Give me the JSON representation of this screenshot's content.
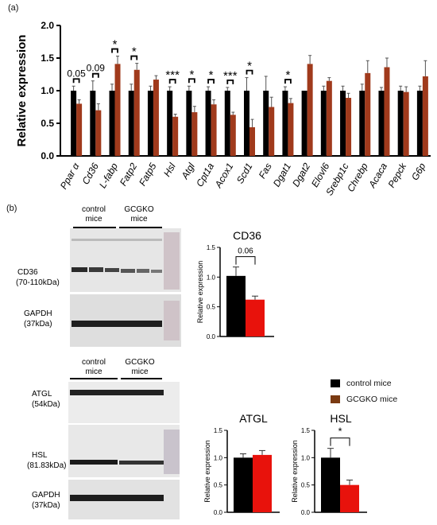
{
  "panels": {
    "a": "(a)",
    "b": "(b)"
  },
  "colors": {
    "control": "#000000",
    "gcgko_top": "#a03a1c",
    "gcgko_small": "#e8120c",
    "legend_gcgko": "#7a3a12"
  },
  "chart_data": [
    {
      "type": "bar",
      "panel": "(a)",
      "ylabel": "Relative expression",
      "ylim": [
        0,
        2.0
      ],
      "yticks": [
        "0.0",
        "0.5",
        "1.0",
        "1.5",
        "2.0"
      ],
      "categories": [
        "Ppar α",
        "Cd36",
        "L-fabp",
        "Fatp2",
        "Fatp5",
        "Hsl",
        "Atgl",
        "Cpt1a",
        "Acox1",
        "Scd1",
        "Fas",
        "Dgat1",
        "Dgat2",
        "Elovl6",
        "Srebp1c",
        "Chrebp",
        "Acaca",
        "Pepck",
        "G6p"
      ],
      "series": [
        {
          "values": [
            1.0,
            1.0,
            1.0,
            1.0,
            1.0,
            1.0,
            1.0,
            1.0,
            1.0,
            1.0,
            1.0,
            1.0,
            1.0,
            1.0,
            1.0,
            1.0,
            1.0,
            1.0,
            1.0
          ],
          "errors": [
            0.07,
            0.15,
            0.1,
            0.1,
            0.07,
            0.06,
            0.07,
            0.06,
            0.05,
            0.2,
            0.22,
            0.06,
            0.0,
            0.07,
            0.07,
            0.1,
            0.05,
            0.07,
            0.07
          ]
        },
        {
          "values": [
            0.8,
            0.7,
            1.41,
            1.32,
            1.17,
            0.6,
            0.67,
            0.79,
            0.63,
            0.44,
            0.75,
            0.81,
            1.41,
            1.15,
            0.89,
            1.27,
            1.36,
            0.98,
            1.22
          ],
          "errors": [
            0.06,
            0.1,
            0.12,
            0.1,
            0.06,
            0.04,
            0.09,
            0.07,
            0.04,
            0.12,
            0.15,
            0.07,
            0.13,
            0.05,
            0.07,
            0.19,
            0.14,
            0.08,
            0.24
          ]
        }
      ],
      "annotations": [
        {
          "category": "Ppar α",
          "text": "0.05"
        },
        {
          "category": "Cd36",
          "text": "0.09"
        },
        {
          "category": "L-fabp",
          "text": "*"
        },
        {
          "category": "Fatp2",
          "text": "*"
        },
        {
          "category": "Hsl",
          "text": "***"
        },
        {
          "category": "Atgl",
          "text": "*"
        },
        {
          "category": "Cpt1a",
          "text": "*"
        },
        {
          "category": "Acox1",
          "text": "***"
        },
        {
          "category": "Scd1",
          "text": "*"
        },
        {
          "category": "Dgat1",
          "text": "*"
        }
      ]
    },
    {
      "type": "bar",
      "title": "CD36",
      "ylabel": "Relative expression",
      "ylim": [
        0,
        1.5
      ],
      "yticks": [
        "0.0",
        "0.5",
        "1.0",
        "1.5"
      ],
      "categories": [
        "control mice",
        "GCGKO mice"
      ],
      "values": [
        1.02,
        0.62
      ],
      "errors": [
        0.15,
        0.06
      ],
      "annotation": "0.06"
    },
    {
      "type": "bar",
      "title": "ATGL",
      "ylabel": "Relative expression",
      "ylim": [
        0,
        1.5
      ],
      "yticks": [
        "0.0",
        "0.5",
        "1.0",
        "1.5"
      ],
      "categories": [
        "control mice",
        "GCGKO mice"
      ],
      "values": [
        1.0,
        1.05
      ],
      "errors": [
        0.07,
        0.08
      ]
    },
    {
      "type": "bar",
      "title": "HSL",
      "ylabel": "Relative expression",
      "ylim": [
        0,
        1.5
      ],
      "yticks": [
        "0.0",
        "0.5",
        "1.0",
        "1.5"
      ],
      "categories": [
        "control mice",
        "GCGKO mice"
      ],
      "values": [
        1.0,
        0.5
      ],
      "errors": [
        0.17,
        0.09
      ],
      "annotation": "*"
    }
  ],
  "legend": {
    "items": [
      "control mice",
      "GCGKO mice"
    ]
  },
  "blots": {
    "group_control": "control\nmice",
    "group_control_1": "control",
    "group_control_2": "mice",
    "group_gcgko_1": "GCGKO",
    "group_gcgko_2": "mice",
    "cd36_1": "CD36",
    "cd36_2": "(70-110kDa)",
    "gapdh_1": "GAPDH",
    "gapdh_2": "(37kDa)",
    "atgl_1": "ATGL",
    "atgl_2": "(54kDa)",
    "hsl_1": "HSL",
    "hsl_2": "(81.83kDa)",
    "gapdh2_1": "GAPDH",
    "gapdh2_2": "(37kDa)"
  }
}
